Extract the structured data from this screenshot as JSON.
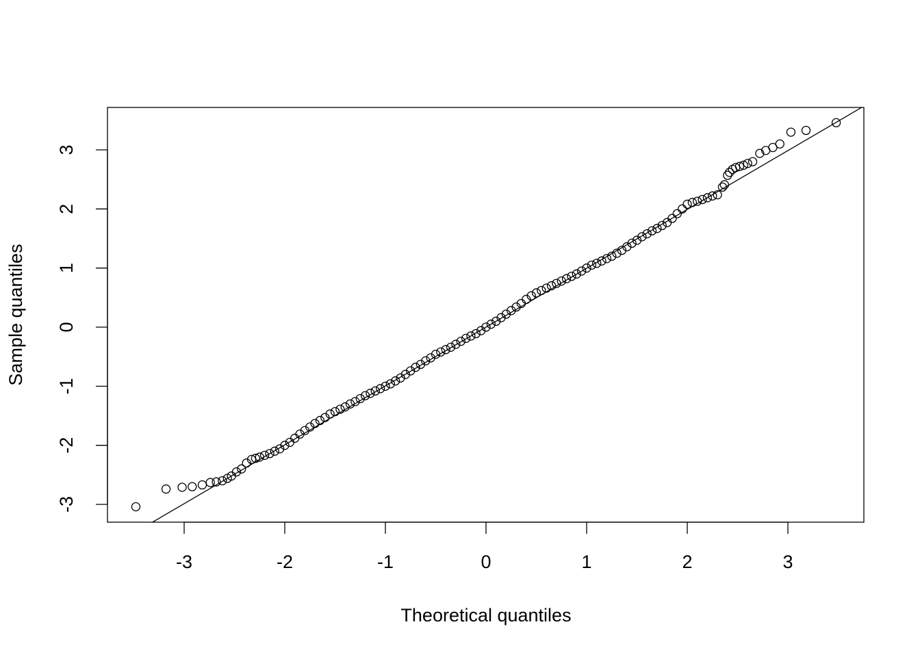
{
  "chart_data": {
    "type": "scatter",
    "xlabel": "Theoretical quantiles",
    "ylabel": "Sample quantiles",
    "xlim": [
      -3.762,
      3.755
    ],
    "ylim": [
      -3.301,
      3.718
    ],
    "xticks": [
      -3,
      -2,
      -1,
      0,
      1,
      2,
      3
    ],
    "yticks": [
      -3,
      -2,
      -1,
      0,
      1,
      2,
      3
    ],
    "grid": false,
    "marker_color": "#000000",
    "reference_line": {
      "intercept": 0.0,
      "slope": 0.996
    },
    "x": [
      -3.48,
      -3.18,
      -3.02,
      -2.92,
      -2.82,
      -2.74,
      -2.68,
      -2.62,
      -2.57,
      -2.53,
      -2.48,
      -2.43,
      -2.38,
      -2.33,
      -2.29,
      -2.25,
      -2.2,
      -2.15,
      -2.1,
      -2.05,
      -2.0,
      -1.95,
      -1.9,
      -1.85,
      -1.8,
      -1.75,
      -1.7,
      -1.65,
      -1.6,
      -1.55,
      -1.5,
      -1.45,
      -1.4,
      -1.35,
      -1.3,
      -1.25,
      -1.2,
      -1.15,
      -1.1,
      -1.05,
      -1.0,
      -0.95,
      -0.9,
      -0.85,
      -0.8,
      -0.75,
      -0.7,
      -0.65,
      -0.6,
      -0.55,
      -0.5,
      -0.45,
      -0.4,
      -0.35,
      -0.3,
      -0.25,
      -0.2,
      -0.15,
      -0.1,
      -0.05,
      0,
      0.05,
      0.1,
      0.15,
      0.2,
      0.25,
      0.3,
      0.35,
      0.4,
      0.45,
      0.5,
      0.55,
      0.6,
      0.65,
      0.7,
      0.75,
      0.8,
      0.85,
      0.9,
      0.95,
      1.0,
      1.05,
      1.1,
      1.15,
      1.2,
      1.25,
      1.3,
      1.35,
      1.4,
      1.45,
      1.5,
      1.55,
      1.6,
      1.65,
      1.7,
      1.75,
      1.8,
      1.85,
      1.9,
      1.95,
      2.0,
      2.05,
      2.1,
      2.15,
      2.2,
      2.25,
      2.3,
      2.35,
      2.37,
      2.4,
      2.42,
      2.45,
      2.48,
      2.52,
      2.56,
      2.6,
      2.65,
      2.72,
      2.78,
      2.85,
      2.92,
      3.03,
      3.18,
      3.48
    ],
    "y": [
      -3.04,
      -2.74,
      -2.71,
      -2.7,
      -2.67,
      -2.63,
      -2.62,
      -2.6,
      -2.56,
      -2.52,
      -2.45,
      -2.4,
      -2.3,
      -2.24,
      -2.22,
      -2.2,
      -2.17,
      -2.14,
      -2.1,
      -2.06,
      -2.0,
      -1.95,
      -1.88,
      -1.81,
      -1.75,
      -1.69,
      -1.63,
      -1.58,
      -1.53,
      -1.47,
      -1.43,
      -1.39,
      -1.35,
      -1.3,
      -1.26,
      -1.21,
      -1.16,
      -1.12,
      -1.08,
      -1.04,
      -1.0,
      -0.96,
      -0.91,
      -0.86,
      -0.8,
      -0.74,
      -0.68,
      -0.63,
      -0.57,
      -0.52,
      -0.46,
      -0.42,
      -0.38,
      -0.34,
      -0.29,
      -0.24,
      -0.19,
      -0.15,
      -0.11,
      -0.06,
      0.0,
      0.05,
      0.1,
      0.16,
      0.22,
      0.28,
      0.34,
      0.4,
      0.47,
      0.53,
      0.58,
      0.62,
      0.66,
      0.7,
      0.74,
      0.78,
      0.82,
      0.86,
      0.9,
      0.95,
      1.0,
      1.05,
      1.08,
      1.12,
      1.16,
      1.2,
      1.25,
      1.3,
      1.36,
      1.42,
      1.47,
      1.53,
      1.58,
      1.63,
      1.67,
      1.72,
      1.77,
      1.84,
      1.92,
      2.0,
      2.08,
      2.11,
      2.13,
      2.16,
      2.19,
      2.22,
      2.24,
      2.37,
      2.41,
      2.57,
      2.62,
      2.67,
      2.7,
      2.72,
      2.74,
      2.77,
      2.8,
      2.94,
      2.99,
      3.04,
      3.1,
      3.3,
      3.33,
      3.46
    ]
  }
}
